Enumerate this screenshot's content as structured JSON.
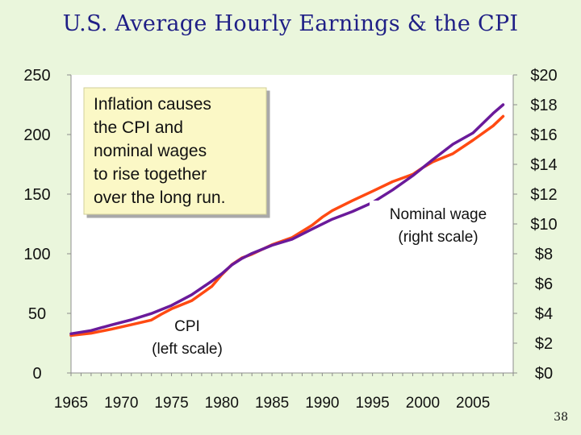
{
  "slide": {
    "title": "U.S. Average Hourly Earnings & the CPI",
    "page_number": "38"
  },
  "colors": {
    "background": "#eaf6dc",
    "plot_area": "#ffffff",
    "title": "#1f1f86",
    "cpi_line": "#ff4a12",
    "wage_line": "#6a1a9a",
    "annotation_box": "#fbf8c6"
  },
  "chart_data": {
    "type": "line",
    "title": "U.S. Average Hourly Earnings & the CPI",
    "x_tick_labels": [
      "1965",
      "1970",
      "1975",
      "1980",
      "1985",
      "1990",
      "1995",
      "2000",
      "2005"
    ],
    "x_ticks": [
      1965,
      1970,
      1975,
      1980,
      1985,
      1990,
      1995,
      2000,
      2005
    ],
    "xlim": [
      1965,
      2009
    ],
    "y_left": {
      "tick_labels": [
        "0",
        "50",
        "100",
        "150",
        "200",
        "250"
      ],
      "ticks": [
        0,
        50,
        100,
        150,
        200,
        250
      ],
      "ylim": [
        0,
        250
      ]
    },
    "y_right": {
      "tick_labels": [
        "$0",
        "$2",
        "$4",
        "$6",
        "$8",
        "$10",
        "$12",
        "$14",
        "$16",
        "$18",
        "$20"
      ],
      "ticks": [
        0,
        2,
        4,
        6,
        8,
        10,
        12,
        14,
        16,
        18,
        20
      ],
      "ylim": [
        0,
        20
      ]
    },
    "series": [
      {
        "key": "cpi",
        "axis": "left",
        "x": [
          1965,
          1967,
          1969,
          1971,
          1973,
          1974,
          1975,
          1977,
          1979,
          1980,
          1981,
          1982,
          1983,
          1985,
          1987,
          1989,
          1990,
          1991,
          1993,
          1995,
          1997,
          1999,
          2000,
          2001,
          2003,
          2005,
          2007,
          2008
        ],
        "values": [
          31.5,
          33.4,
          36.7,
          40.5,
          44.4,
          49.3,
          53.8,
          60.6,
          72.6,
          82.4,
          90.9,
          96.5,
          99.6,
          107.6,
          113.6,
          124.0,
          130.7,
          136.2,
          144.5,
          152.4,
          160.5,
          166.6,
          172.2,
          177.1,
          184.0,
          195.3,
          207.3,
          215.3
        ]
      },
      {
        "key": "wage",
        "axis": "right",
        "x": [
          1965,
          1967,
          1969,
          1971,
          1973,
          1975,
          1977,
          1979,
          1980,
          1981,
          1982,
          1983,
          1985,
          1987,
          1989,
          1991,
          1993,
          1995,
          1997,
          1999,
          2001,
          2003,
          2005,
          2007,
          2008
        ],
        "values": [
          2.63,
          2.85,
          3.22,
          3.57,
          3.99,
          4.53,
          5.25,
          6.16,
          6.66,
          7.25,
          7.68,
          8.02,
          8.57,
          8.98,
          9.66,
          10.32,
          10.83,
          11.43,
          12.28,
          13.24,
          14.32,
          15.35,
          16.11,
          17.42,
          18.0
        ]
      }
    ],
    "annotations": {
      "box_lines": [
        "Inflation causes",
        "the CPI and",
        "nominal wages",
        "to rise together",
        "over the long run."
      ],
      "wage_label_lines": [
        "Nominal wage",
        "(right scale)"
      ],
      "cpi_label_lines": [
        "CPI",
        "(left scale)"
      ]
    },
    "grid": false,
    "legend": "none"
  }
}
